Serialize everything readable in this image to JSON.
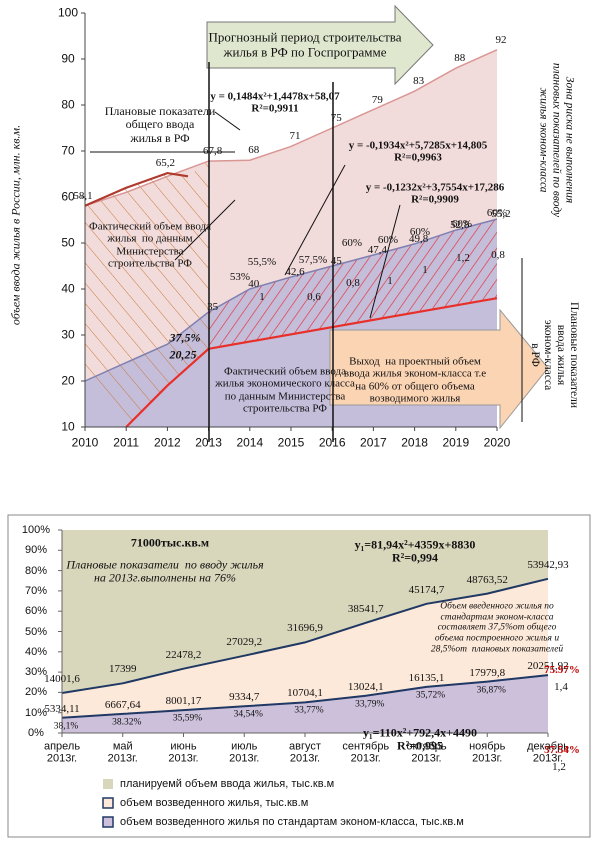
{
  "chart_data": [
    {
      "type": "area",
      "y_label": "объем ввода жилья в России, млн. кв.м.",
      "x": [
        2010,
        2011,
        2012,
        2013,
        2014,
        2015,
        2016,
        2017,
        2018,
        2019,
        2020
      ],
      "xlim": [
        2010,
        2020
      ],
      "xticks": [
        2010,
        2011,
        2012,
        2013,
        2014,
        2015,
        2016,
        2017,
        2018,
        2019,
        2020
      ],
      "ylim": [
        10,
        100
      ],
      "yticks": [
        10,
        20,
        30,
        40,
        50,
        60,
        70,
        80,
        90,
        100
      ],
      "series": [
        {
          "fill": "#f2dcdb",
          "color": "#d99694",
          "values": [
            58.1,
            61,
            64.5,
            67.8,
            68,
            71,
            75,
            79,
            83,
            88,
            92
          ],
          "value_labels": [
            null,
            null,
            null,
            "67,8",
            "68",
            "71",
            "75",
            "79",
            "83",
            "88",
            "92"
          ]
        },
        {
          "fill": "#c5bedb",
          "color": "#8080b0",
          "values": [
            20,
            24,
            28,
            35,
            40,
            42.6,
            45,
            47.4,
            49.8,
            52.8,
            55.2
          ],
          "value_labels": [
            null,
            null,
            null,
            "35",
            "40",
            "42,6",
            "45",
            "47,4",
            "49,8",
            "52,8",
            "55,2"
          ]
        },
        {
          "color": "#b03a2e",
          "x": [
            2010,
            2011,
            2012,
            2012.5
          ],
          "values": [
            58.1,
            62,
            65.2,
            64.5
          ],
          "value_labels": [
            "58,1",
            null,
            "65,2",
            null
          ]
        },
        {
          "color": "#e8302a",
          "x": [
            2011,
            2012,
            2013
          ],
          "values": [
            10,
            19,
            27
          ]
        },
        {
          "color": "#e8302a",
          "x": [
            2013,
            2020
          ],
          "values": [
            27,
            38
          ]
        }
      ],
      "annotations": [
        "Прогнозный период строительства\nжилья в РФ по Госпрограмме",
        "y = 0,1484x²+1,4478x+58,07\nR²=0,9911",
        "Плановые показатели\nобщего ввода\nжилья в РФ",
        "y = -0,1934x²+5,7285x+14,805\nR²=0,9963",
        "y = -0,1232x²+3,7554x+17,286\nR²=0,9909",
        "Фактический объем ввода\nжилья  по данным\nМинистерства\nстроительства РФ",
        "Фактический объем ввода\nжилья экономического класса\nпо данным Министерства\nстроительства РФ",
        "Выход  на проектный объем\nввода жилья эконом-класса т.е\nна 60% от общего объема\nвозводимого жилья",
        "37,5%",
        "20,25",
        "53%",
        "55,5%",
        "57,5%",
        "60%",
        "60%",
        "60%",
        "60%",
        "60%",
        "1",
        "0,6",
        "0,8",
        "1",
        "1",
        "1,2",
        "0,8",
        "Зона риска не выполнения\nплановых показателей по вводу\nжилья эконом-класса",
        "Плановые показатели\nввода жилья\nэконом-класса\nв РФ"
      ]
    },
    {
      "type": "area",
      "categories": [
        "апрель\n2013г.",
        "май\n2013г.",
        "июнь\n2013г.",
        "июль\n2013г.",
        "август\n2013г.",
        "сентябрь\n2013г.",
        "октябрь\n2013г.",
        "ноябрь\n2013г.",
        "декабрь\n2013г."
      ],
      "ylim": [
        0,
        71000
      ],
      "yticks": [
        {
          "value": 0,
          "label": "0%"
        },
        {
          "value": 7100,
          "label": "10%"
        },
        {
          "value": 14200,
          "label": "20%"
        },
        {
          "value": 21300,
          "label": "30%"
        },
        {
          "value": 28400,
          "label": "40%"
        },
        {
          "value": 35500,
          "label": "50%"
        },
        {
          "value": 42600,
          "label": "60%"
        },
        {
          "value": 49700,
          "label": "70%"
        },
        {
          "value": 56800,
          "label": "80%"
        },
        {
          "value": 63900,
          "label": "90%"
        },
        {
          "value": 71000,
          "label": "100%"
        }
      ],
      "series": [
        {
          "name": "планируемй объем ввода жилья, тыс.кв.м",
          "fill": "#d8d6bb",
          "values": [
            71000,
            71000,
            71000,
            71000,
            71000,
            71000,
            71000,
            71000,
            71000
          ]
        },
        {
          "name": "объем возведенного жилья, тыс.кв.м",
          "fill": "#fde9d9",
          "color": "#1f3864",
          "values": [
            14001.6,
            17399,
            22478.2,
            27029.2,
            31696.9,
            38541.7,
            45174.7,
            48763.52,
            53942.93
          ],
          "value_labels": [
            "14001,6",
            "17399",
            "22478,2",
            "27029,2",
            "31696,9",
            "38541,7",
            "45174,7",
            "48763,52",
            "53942,93"
          ]
        },
        {
          "name": "объем возведенного жилья по стандартам эконом-класса, тыс.кв.м",
          "fill": "#ccc0da",
          "color": "#1f3864",
          "values": [
            5334.11,
            6667.64,
            8001.17,
            9334.7,
            10704.1,
            13024.1,
            16135.1,
            17979.8,
            20251.92
          ],
          "value_labels": [
            "5334,11",
            "6667,64",
            "8001,17",
            "9334,7",
            "10704,1",
            "13024,1",
            "16135,1",
            "17979,8",
            "20251,92"
          ],
          "share_labels": [
            "38,1%",
            "38.32%",
            "35,59%",
            "34,54%",
            "33,77%",
            "33,79%",
            "35,72%",
            "36,87%",
            null
          ]
        }
      ],
      "annotations": [
        "71000тыс.кв.м",
        "Плановые показатели  по вводу жилья\nна 2013г.выполнены на 76%",
        "y₁=81,94x²+4359x+8830\nR²=0,994",
        "Объем введенного жилья по\nстандартам эконом-класса\nсоставляет 37,5%от общего\nобъема построенного жилья и\n28,5%от  плановых показателей",
        "75.97%",
        "1,4",
        "37.54%",
        "1,2",
        "y₁=110x²+792,4x+4490\nR²=0,995"
      ]
    }
  ]
}
